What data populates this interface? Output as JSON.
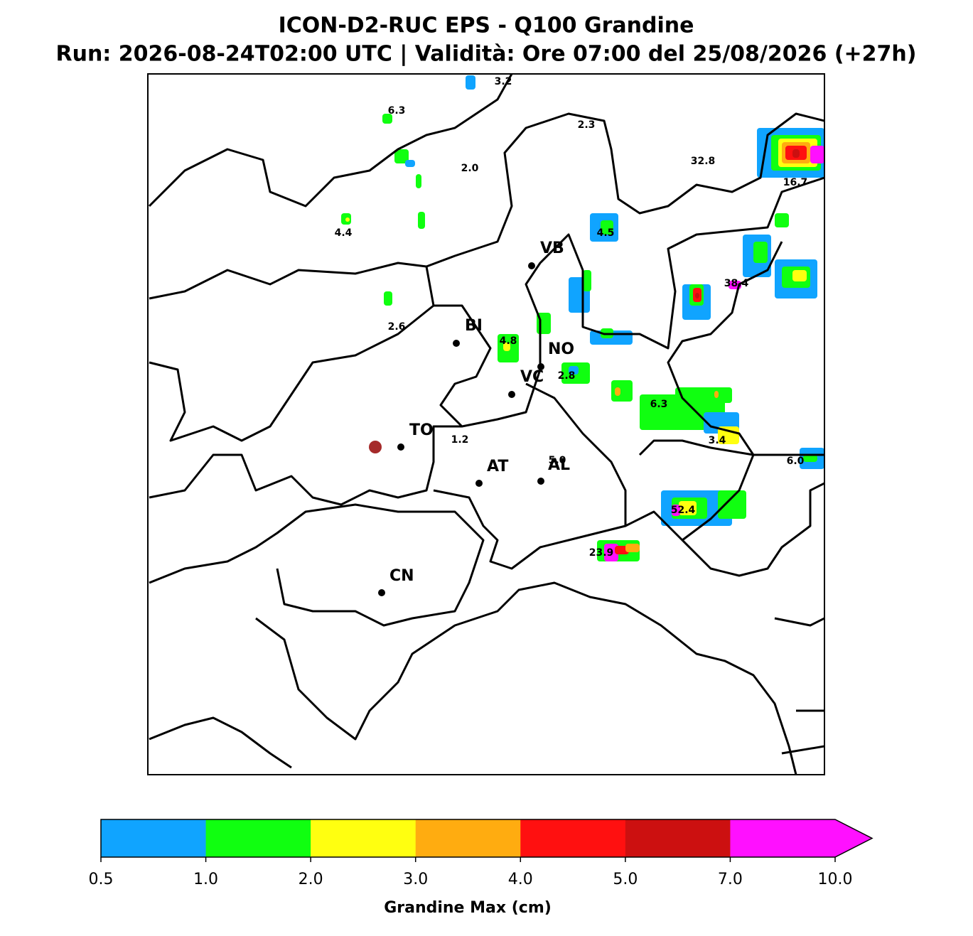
{
  "header": {
    "title": "ICON-D2-RUC EPS - Q100 Grandine",
    "subtitle": "Run: 2026-08-24T02:00 UTC | Validità: Ore 07:00 del 25/08/2026 (+27h)"
  },
  "map": {
    "cities": [
      "VB",
      "BI",
      "NO",
      "VC",
      "TO",
      "AT",
      "AL",
      "CN"
    ],
    "value_labels": [
      "3.2",
      "6.3",
      "2.3",
      "2.0",
      "32.8",
      "16.7",
      "4.4",
      "4.5",
      "38.4",
      "2.6",
      "4.8",
      "2.8",
      "6.3",
      "1.2",
      "3.4",
      "5.0",
      "6.0",
      "52.4",
      "23.9"
    ]
  },
  "colorbar": {
    "label": "Grandine Max (cm)",
    "colors": [
      "#10a4ff",
      "#10ff10",
      "#ffff10",
      "#ffac10",
      "#ff1010",
      "#cc1010",
      "#ff10ff"
    ],
    "extend": "max",
    "ticks": [
      {
        "value": 0.5,
        "label": "0.5"
      },
      {
        "value": 1,
        "label": "1.0"
      },
      {
        "value": 2,
        "label": "2.0"
      },
      {
        "value": 3,
        "label": "3.0"
      },
      {
        "value": 4,
        "label": "4.0"
      },
      {
        "value": 5,
        "label": "5.0"
      },
      {
        "value": 7,
        "label": "7.0"
      },
      {
        "value": 10,
        "label": "10.0"
      }
    ]
  }
}
